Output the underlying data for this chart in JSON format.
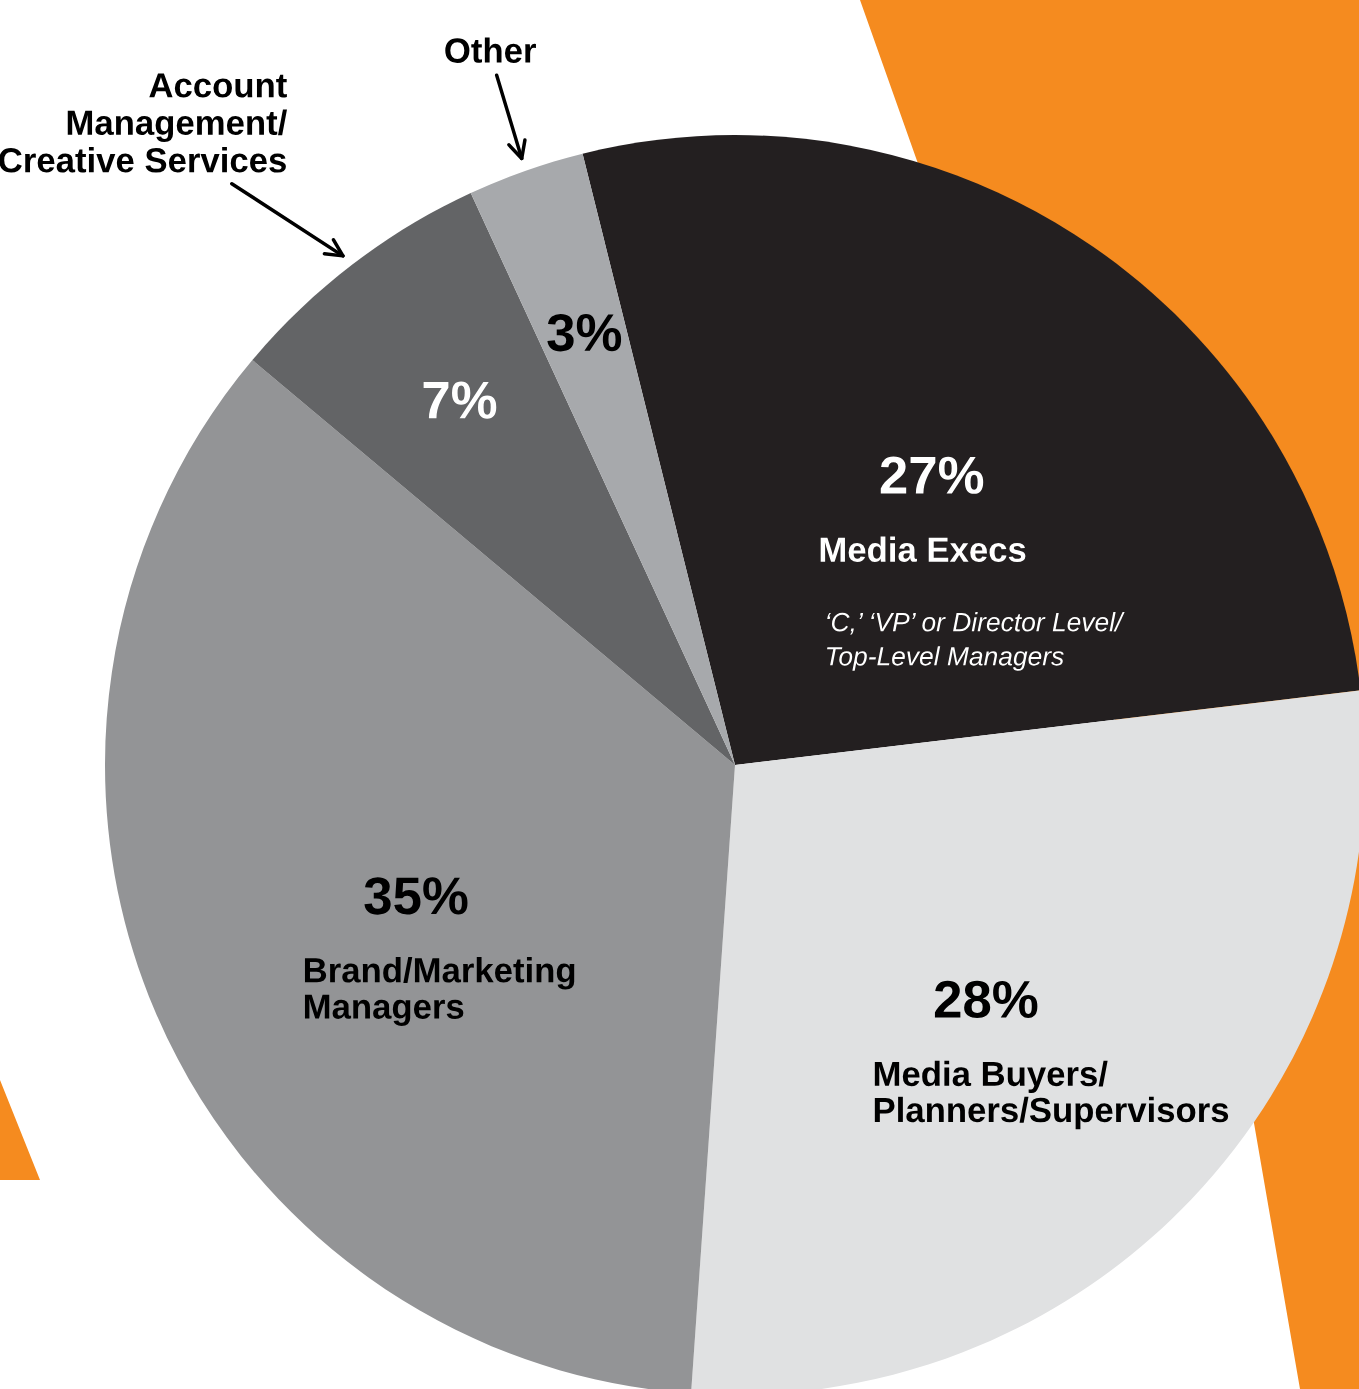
{
  "chart_data": {
    "type": "pie",
    "categories": [
      "Media Execs",
      "Media Buyers/\nPlanners/Supervisors",
      "Brand/Marketing\nManagers",
      "Account\nManagement/\nCreative Services",
      "Other"
    ],
    "values": [
      27,
      28,
      35,
      7,
      3
    ],
    "value_labels": [
      "27%",
      "28%",
      "35%",
      "7%",
      "3%"
    ],
    "colors": [
      "#231f20",
      "#e0e1e2",
      "#939496",
      "#636466",
      "#a7a9ac"
    ],
    "annotations": [
      "‘C,’ ‘VP’ or Director Level/\nTop-Level Managers"
    ]
  }
}
